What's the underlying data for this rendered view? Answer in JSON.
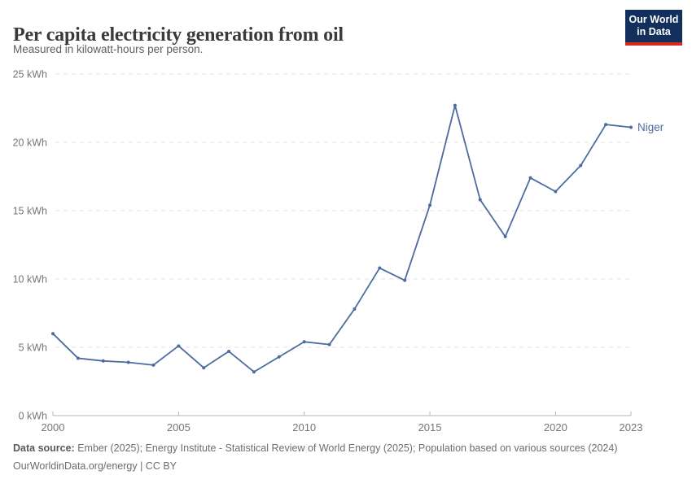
{
  "header": {
    "title": "Per capita electricity generation from oil",
    "subtitle": "Measured in kilowatt-hours per person.",
    "logo": {
      "line1": "Our World",
      "line2": "in Data"
    }
  },
  "chart_data": {
    "type": "line",
    "title": "Per capita electricity generation from oil",
    "unit": "kWh",
    "x": [
      2000,
      2001,
      2002,
      2003,
      2004,
      2005,
      2006,
      2007,
      2008,
      2009,
      2010,
      2011,
      2012,
      2013,
      2014,
      2015,
      2016,
      2017,
      2018,
      2019,
      2020,
      2021,
      2022,
      2023
    ],
    "series": [
      {
        "name": "Niger",
        "color": "#4c6ba0",
        "values": [
          6.0,
          4.2,
          4.0,
          3.9,
          3.7,
          5.1,
          3.5,
          4.7,
          3.2,
          4.3,
          5.4,
          5.2,
          7.8,
          10.8,
          9.9,
          15.4,
          22.7,
          15.8,
          13.1,
          17.4,
          16.4,
          18.3,
          21.3,
          21.1
        ]
      }
    ],
    "ylim": [
      0,
      25
    ],
    "yticks": [
      0,
      5,
      10,
      15,
      20,
      25
    ],
    "ytick_suffix": " kWh",
    "xticks": [
      2000,
      2005,
      2010,
      2015,
      2020,
      2023
    ],
    "grid": "horizontal-dashed",
    "legend": "end-of-line-label"
  },
  "footer": {
    "datasource_label": "Data source:",
    "datasource_text": " Ember (2025); Energy Institute - Statistical Review of World Energy (2025); Population based on various sources (2024)",
    "license_text": "OurWorldinData.org/energy | CC BY"
  },
  "colors": {
    "line": "#4c6ba0",
    "grid": "#e0e0e0",
    "axis": "#b5b5b5",
    "tick_label": "#757575",
    "logo_bg": "#12305b",
    "logo_bar": "#d7291f"
  }
}
